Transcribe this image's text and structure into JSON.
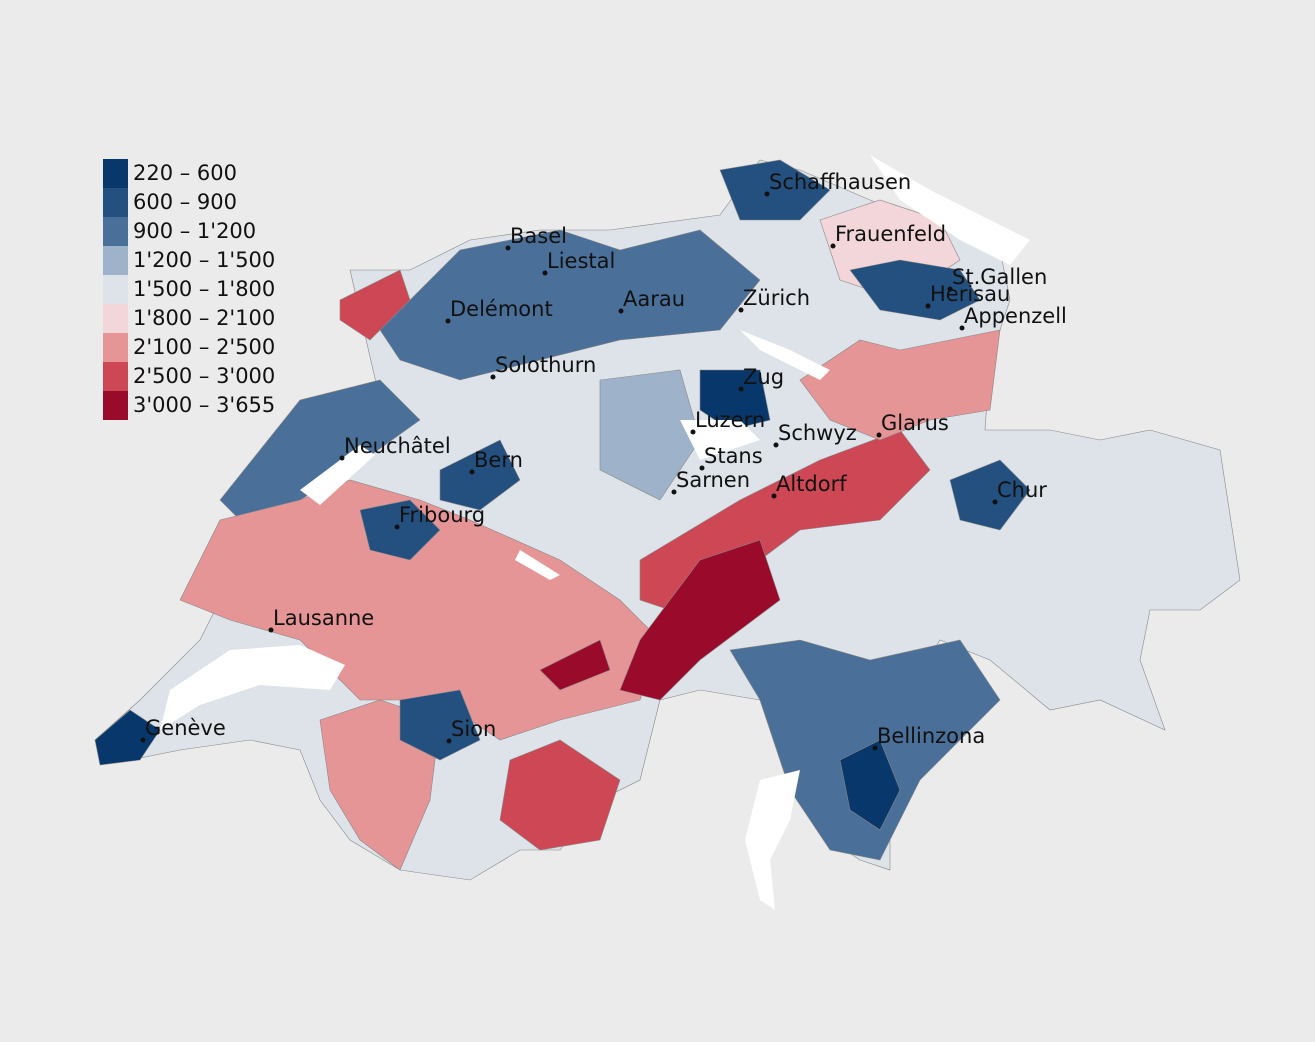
{
  "legend": [
    {
      "label": "220 – 600",
      "color": "#08386b"
    },
    {
      "label": "600 – 900",
      "color": "#23507f"
    },
    {
      "label": "900 – 1'200",
      "color": "#4a6f98"
    },
    {
      "label": "1'200 – 1'500",
      "color": "#9eb3c9"
    },
    {
      "label": "1'500 – 1'800",
      "color": "#dde3e9"
    },
    {
      "label": "1'800 – 2'100",
      "color": "#f3d6d9"
    },
    {
      "label": "2'100 – 2'500",
      "color": "#e69597"
    },
    {
      "label": "2'500 – 3'000",
      "color": "#cd4754"
    },
    {
      "label": "3'000 – 3'655",
      "color": "#9a0a2a"
    }
  ],
  "cities": [
    "Schaffhausen",
    "Frauenfeld",
    "Basel",
    "Liestal",
    "St.Gallen",
    "Herisau",
    "Appenzell",
    "Delémont",
    "Aarau",
    "Zürich",
    "Solothurn",
    "Zug",
    "Luzern",
    "Schwyz",
    "Glarus",
    "Neuchâtel",
    "Bern",
    "Stans",
    "Sarnen",
    "Altdorf",
    "Chur",
    "Fribourg",
    "Lausanne",
    "Sion",
    "Genève",
    "Bellinzona"
  ]
}
